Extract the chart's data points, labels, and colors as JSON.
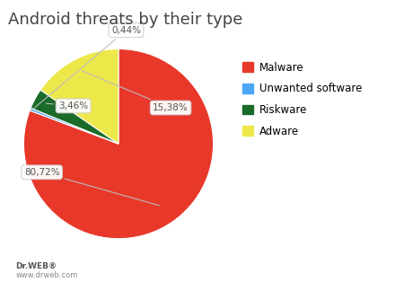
{
  "title": "Android threats by their type",
  "slices": [
    80.72,
    0.44,
    3.46,
    15.38
  ],
  "labels": [
    "80,72%",
    "0,44%",
    "3,46%",
    "15,38%"
  ],
  "colors": [
    "#e8382a",
    "#4da6f5",
    "#1a6b2a",
    "#ede84a"
  ],
  "legend_labels": [
    "Malware",
    "Unwanted software",
    "Riskware",
    "Adware"
  ],
  "startangle": 90,
  "background_color": "#ffffff",
  "title_fontsize": 13,
  "label_fontsize": 7.5,
  "footer_main": "Dr.WEB®",
  "footer_sub": "www.drweb.com"
}
